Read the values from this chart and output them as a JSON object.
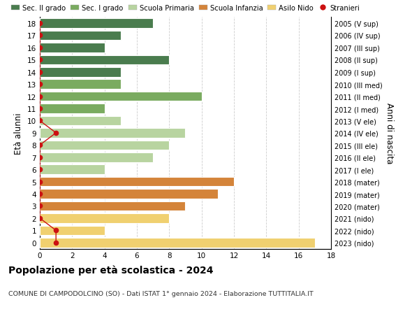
{
  "ages": [
    18,
    17,
    16,
    15,
    14,
    13,
    12,
    11,
    10,
    9,
    8,
    7,
    6,
    5,
    4,
    3,
    2,
    1,
    0
  ],
  "right_labels": [
    "2005 (V sup)",
    "2006 (IV sup)",
    "2007 (III sup)",
    "2008 (II sup)",
    "2009 (I sup)",
    "2010 (III med)",
    "2011 (II med)",
    "2012 (I med)",
    "2013 (V ele)",
    "2014 (IV ele)",
    "2015 (III ele)",
    "2016 (II ele)",
    "2017 (I ele)",
    "2018 (mater)",
    "2019 (mater)",
    "2020 (mater)",
    "2021 (nido)",
    "2022 (nido)",
    "2023 (nido)"
  ],
  "bar_values": [
    7,
    5,
    4,
    8,
    5,
    5,
    10,
    4,
    5,
    9,
    8,
    7,
    4,
    12,
    11,
    9,
    8,
    4,
    17
  ],
  "bar_colors": [
    "#4a7c4e",
    "#4a7c4e",
    "#4a7c4e",
    "#4a7c4e",
    "#4a7c4e",
    "#7aab60",
    "#7aab60",
    "#7aab60",
    "#b8d4a0",
    "#b8d4a0",
    "#b8d4a0",
    "#b8d4a0",
    "#b8d4a0",
    "#d4843a",
    "#d4843a",
    "#d4843a",
    "#f0d070",
    "#f0d070",
    "#f0d070"
  ],
  "stranieri_x": [
    0,
    0,
    0,
    0,
    0,
    0,
    0,
    0,
    0,
    1,
    0,
    0,
    0,
    0,
    0,
    0,
    0,
    1,
    1
  ],
  "xlim": [
    0,
    18
  ],
  "ylabel_left": "Età alunni",
  "ylabel_right": "Anni di nascita",
  "title": "Popolazione per età scolastica - 2024",
  "subtitle": "COMUNE DI CAMPODOLCINO (SO) - Dati ISTAT 1° gennaio 2024 - Elaborazione TUTTITALIA.IT",
  "legend_labels": [
    "Sec. II grado",
    "Sec. I grado",
    "Scuola Primaria",
    "Scuola Infanzia",
    "Asilo Nido",
    "Stranieri"
  ],
  "legend_colors": [
    "#4a7c4e",
    "#7aab60",
    "#b8d4a0",
    "#d4843a",
    "#f0d070",
    "#cc1111"
  ],
  "background_color": "#ffffff",
  "grid_color": "#cccccc",
  "bar_height": 0.78,
  "stranieri_color": "#cc1111",
  "xticks": [
    0,
    2,
    4,
    6,
    8,
    10,
    12,
    14,
    16,
    18
  ]
}
